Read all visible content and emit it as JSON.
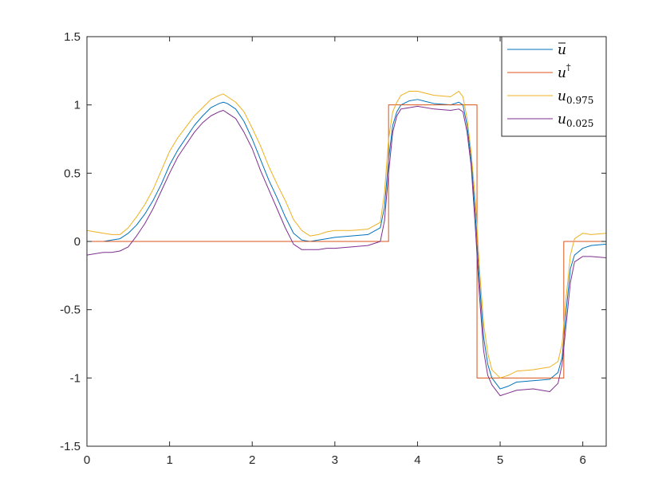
{
  "chart_data": {
    "type": "line",
    "title": "",
    "xlabel": "",
    "ylabel": "",
    "xlim": [
      0,
      6.2832
    ],
    "ylim": [
      -1.5,
      1.5
    ],
    "x_ticks": [
      "0",
      "1",
      "2",
      "3",
      "4",
      "5",
      "6"
    ],
    "x_tick_values": [
      0,
      1,
      2,
      3,
      4,
      5,
      6
    ],
    "y_ticks": [
      "1.5",
      "1",
      "0.5",
      "0",
      "-0.5",
      "-1",
      "-1.5"
    ],
    "y_tick_values": [
      1.5,
      1,
      0.5,
      0,
      -0.5,
      -1,
      -1.5
    ],
    "grid": false,
    "legend_position": "top-right",
    "legend": [
      {
        "key": "ubar",
        "base": "u",
        "sub": ""
      },
      {
        "key": "udagger",
        "base": "u",
        "sub": ""
      },
      {
        "key": "u975",
        "base": "u",
        "sub": "0.975"
      },
      {
        "key": "u025",
        "base": "u",
        "sub": "0.025"
      }
    ],
    "series": [
      {
        "key": "ubar",
        "color": "#0072BD",
        "x": [
          0,
          0.1,
          0.2,
          0.3,
          0.4,
          0.5,
          0.6,
          0.7,
          0.8,
          0.9,
          1.0,
          1.1,
          1.2,
          1.3,
          1.4,
          1.5,
          1.6,
          1.65,
          1.7,
          1.8,
          1.9,
          2.0,
          2.1,
          2.2,
          2.3,
          2.4,
          2.5,
          2.6,
          2.7,
          2.8,
          2.9,
          3.0,
          3.2,
          3.4,
          3.55,
          3.6,
          3.65,
          3.7,
          3.75,
          3.8,
          3.9,
          4.0,
          4.2,
          4.4,
          4.5,
          4.55,
          4.6,
          4.65,
          4.7,
          4.75,
          4.8,
          4.85,
          4.9,
          5.0,
          5.1,
          5.2,
          5.4,
          5.6,
          5.7,
          5.75,
          5.8,
          5.85,
          5.9,
          6.0,
          6.1,
          6.2832
        ],
        "y": [
          0.0,
          0.0,
          0.0,
          0.01,
          0.02,
          0.06,
          0.12,
          0.2,
          0.3,
          0.42,
          0.56,
          0.67,
          0.76,
          0.85,
          0.92,
          0.98,
          1.01,
          1.02,
          1.01,
          0.97,
          0.88,
          0.75,
          0.6,
          0.45,
          0.32,
          0.18,
          0.06,
          0.01,
          0.0,
          0.01,
          0.02,
          0.03,
          0.04,
          0.05,
          0.1,
          0.25,
          0.6,
          0.85,
          0.95,
          1.0,
          1.03,
          1.04,
          1.01,
          1.0,
          1.02,
          1.0,
          0.85,
          0.6,
          0.2,
          -0.3,
          -0.7,
          -0.9,
          -1.0,
          -1.08,
          -1.06,
          -1.03,
          -1.02,
          -1.01,
          -0.96,
          -0.85,
          -0.5,
          -0.2,
          -0.1,
          -0.05,
          -0.03,
          -0.02
        ]
      },
      {
        "key": "udagger",
        "color": "#D95319",
        "x": [
          0,
          3.6,
          3.6,
          3.65,
          3.65,
          4.72,
          4.72,
          5.77,
          5.77,
          6.2832
        ],
        "y": [
          0,
          0,
          0,
          0,
          1,
          1,
          -1,
          -1,
          0,
          0
        ]
      },
      {
        "key": "u975",
        "color": "#EDB120",
        "x": [
          0,
          0.1,
          0.2,
          0.3,
          0.4,
          0.5,
          0.6,
          0.7,
          0.8,
          0.9,
          1.0,
          1.1,
          1.2,
          1.3,
          1.4,
          1.5,
          1.6,
          1.65,
          1.7,
          1.8,
          1.9,
          2.0,
          2.1,
          2.2,
          2.3,
          2.4,
          2.5,
          2.6,
          2.7,
          2.8,
          2.9,
          3.0,
          3.2,
          3.4,
          3.55,
          3.6,
          3.65,
          3.7,
          3.75,
          3.8,
          3.9,
          4.0,
          4.2,
          4.4,
          4.5,
          4.55,
          4.6,
          4.65,
          4.7,
          4.75,
          4.8,
          4.85,
          4.9,
          5.0,
          5.1,
          5.2,
          5.4,
          5.6,
          5.7,
          5.75,
          5.8,
          5.85,
          5.9,
          6.0,
          6.1,
          6.2832
        ],
        "y": [
          0.08,
          0.07,
          0.06,
          0.05,
          0.05,
          0.1,
          0.18,
          0.27,
          0.38,
          0.52,
          0.66,
          0.76,
          0.84,
          0.92,
          0.98,
          1.04,
          1.07,
          1.08,
          1.06,
          1.02,
          0.95,
          0.83,
          0.7,
          0.55,
          0.42,
          0.3,
          0.16,
          0.08,
          0.04,
          0.05,
          0.07,
          0.08,
          0.08,
          0.09,
          0.14,
          0.35,
          0.75,
          0.95,
          1.02,
          1.07,
          1.1,
          1.1,
          1.07,
          1.06,
          1.1,
          1.06,
          0.9,
          0.65,
          0.3,
          -0.2,
          -0.6,
          -0.82,
          -0.94,
          -1.0,
          -0.98,
          -0.95,
          -0.94,
          -0.92,
          -0.88,
          -0.75,
          -0.4,
          -0.1,
          0.02,
          0.06,
          0.05,
          0.06
        ]
      },
      {
        "key": "u025",
        "color": "#7E2F8E",
        "x": [
          0,
          0.1,
          0.2,
          0.3,
          0.4,
          0.5,
          0.6,
          0.7,
          0.8,
          0.9,
          1.0,
          1.1,
          1.2,
          1.3,
          1.4,
          1.5,
          1.6,
          1.65,
          1.7,
          1.8,
          1.9,
          2.0,
          2.1,
          2.2,
          2.3,
          2.4,
          2.5,
          2.6,
          2.7,
          2.8,
          2.9,
          3.0,
          3.2,
          3.4,
          3.55,
          3.6,
          3.65,
          3.7,
          3.75,
          3.8,
          3.9,
          4.0,
          4.2,
          4.4,
          4.5,
          4.55,
          4.6,
          4.65,
          4.7,
          4.75,
          4.8,
          4.85,
          4.9,
          5.0,
          5.1,
          5.2,
          5.4,
          5.6,
          5.7,
          5.75,
          5.8,
          5.85,
          5.9,
          6.0,
          6.1,
          6.2832
        ],
        "y": [
          -0.1,
          -0.09,
          -0.08,
          -0.08,
          -0.07,
          -0.04,
          0.04,
          0.13,
          0.24,
          0.37,
          0.5,
          0.62,
          0.71,
          0.8,
          0.87,
          0.92,
          0.95,
          0.96,
          0.94,
          0.9,
          0.8,
          0.68,
          0.52,
          0.38,
          0.24,
          0.1,
          -0.02,
          -0.06,
          -0.06,
          -0.06,
          -0.05,
          -0.05,
          -0.04,
          -0.03,
          0.0,
          0.15,
          0.5,
          0.8,
          0.92,
          0.97,
          0.98,
          0.99,
          0.97,
          0.96,
          0.97,
          0.95,
          0.8,
          0.55,
          0.1,
          -0.4,
          -0.8,
          -0.98,
          -1.05,
          -1.13,
          -1.11,
          -1.09,
          -1.08,
          -1.1,
          -1.04,
          -0.9,
          -0.6,
          -0.3,
          -0.15,
          -0.11,
          -0.11,
          -0.12
        ]
      }
    ]
  }
}
